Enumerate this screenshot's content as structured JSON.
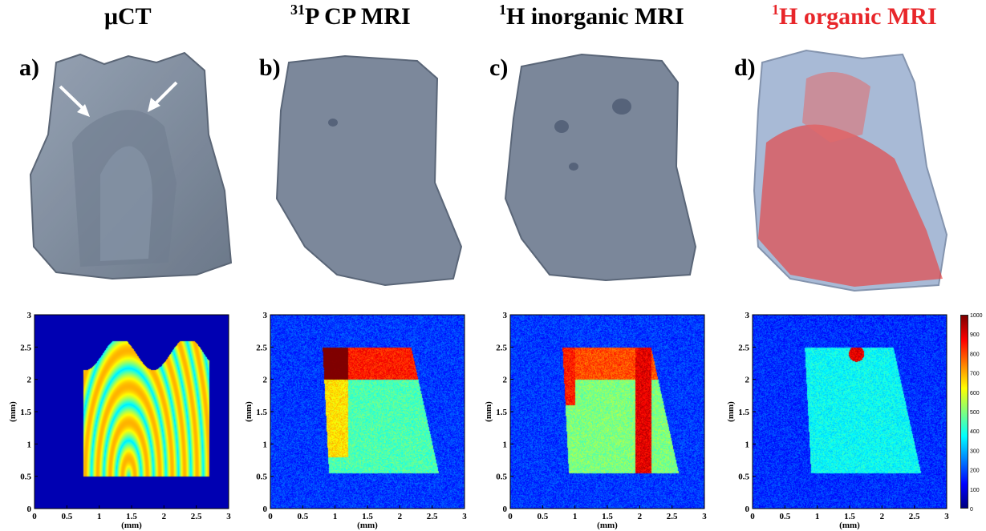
{
  "panels": [
    {
      "title_main": "μCT",
      "title_sup": "",
      "label": "a)",
      "color": "#000000"
    },
    {
      "title_sup": "31",
      "title_main": "P  CP MRI",
      "label": "b)",
      "color": "#000000"
    },
    {
      "title_sup": "1",
      "title_main": "H inorganic MRI",
      "label": "c)",
      "color": "#000000"
    },
    {
      "title_sup": "1",
      "title_main": "H organic MRI",
      "label": "d)",
      "color": "#e8262a"
    }
  ],
  "axes": {
    "xlabel": "(mm)",
    "ylabel": "(mm)",
    "x_ticks": [
      "0",
      "0.5",
      "1",
      "1.5",
      "2",
      "2.5",
      "3"
    ],
    "y_ticks": [
      "0",
      "0.5",
      "1",
      "1.5",
      "2",
      "2.5",
      "3"
    ]
  },
  "colorbar": {
    "ticks": [
      "0",
      "100",
      "200",
      "300",
      "400",
      "500",
      "600",
      "700",
      "800",
      "900",
      "1000"
    ],
    "range": [
      0,
      1000
    ]
  },
  "chart_data": [
    {
      "type": "heatmap",
      "title": "μCT",
      "xlabel": "(mm)",
      "ylabel": "(mm)",
      "xlim": [
        0,
        3
      ],
      "ylim": [
        0,
        3
      ]
    },
    {
      "type": "heatmap",
      "title": "31P CP MRI",
      "xlabel": "(mm)",
      "ylabel": "(mm)",
      "xlim": [
        0,
        3
      ],
      "ylim": [
        0,
        3
      ]
    },
    {
      "type": "heatmap",
      "title": "1H inorganic MRI",
      "xlabel": "(mm)",
      "ylabel": "(mm)",
      "xlim": [
        0,
        3
      ],
      "ylim": [
        0,
        3
      ]
    },
    {
      "type": "heatmap",
      "title": "1H organic MRI",
      "xlabel": "(mm)",
      "ylabel": "(mm)",
      "xlim": [
        0,
        3
      ],
      "ylim": [
        0,
        3
      ],
      "colorbar_range": [
        0,
        1000
      ]
    }
  ]
}
